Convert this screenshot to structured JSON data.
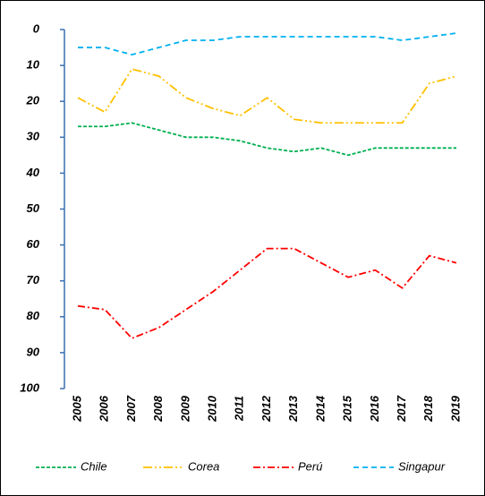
{
  "chart_data": {
    "type": "line",
    "categories": [
      "2005",
      "2006",
      "2007",
      "2008",
      "2009",
      "2010",
      "2011",
      "2012",
      "2013",
      "2014",
      "2015",
      "2016",
      "2017",
      "2018",
      "2019"
    ],
    "series": [
      {
        "name": "Chile",
        "color": "#00b050",
        "dash": "4 2",
        "values": [
          27,
          27,
          26,
          28,
          30,
          30,
          31,
          33,
          34,
          33,
          35,
          33,
          33,
          33,
          33
        ]
      },
      {
        "name": "Corea",
        "color": "#ffc000",
        "dash": "10 3 2 3 2 3",
        "values": [
          19,
          23,
          11,
          13,
          19,
          22,
          24,
          19,
          25,
          26,
          26,
          26,
          26,
          15,
          13
        ]
      },
      {
        "name": "Perú",
        "color": "#ff0000",
        "dash": "8 3 2 3",
        "values": [
          77,
          78,
          86,
          83,
          78,
          73,
          67,
          61,
          61,
          65,
          69,
          67,
          72,
          63,
          65
        ]
      },
      {
        "name": "Singapur",
        "color": "#00b0f0",
        "dash": "6 4",
        "values": [
          5,
          5,
          7,
          5,
          3,
          3,
          2,
          2,
          2,
          2,
          2,
          2,
          3,
          2,
          1
        ]
      }
    ],
    "ylim": [
      0,
      100
    ],
    "y_inverted": true,
    "yticks": [
      0,
      10,
      20,
      30,
      40,
      50,
      60,
      70,
      80,
      90,
      100
    ],
    "grid": false,
    "legend": "bottom"
  }
}
